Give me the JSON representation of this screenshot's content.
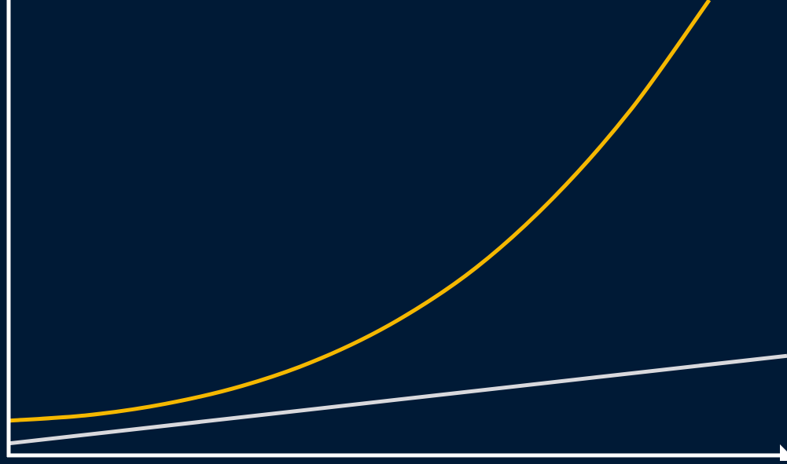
{
  "chart_data": {
    "type": "line",
    "title": "",
    "xlabel": "",
    "ylabel": "",
    "grid": false,
    "legend": "none",
    "xlim": [
      0,
      10
    ],
    "ylim": [
      0,
      100
    ],
    "series": [
      {
        "color": "#f5b800",
        "x": [
          0,
          1,
          2,
          3,
          4,
          5,
          6,
          7,
          8,
          9
        ],
        "y": [
          7.3,
          8.5,
          11.0,
          15.0,
          21.0,
          29.5,
          41.0,
          56.5,
          76.0,
          100.0
        ]
      },
      {
        "color": "#d9d9dd",
        "x": [
          0,
          10
        ],
        "y": [
          2.3,
          21.6
        ]
      }
    ]
  },
  "colors": {
    "background": "#001a36",
    "axis": "#ffffff"
  }
}
